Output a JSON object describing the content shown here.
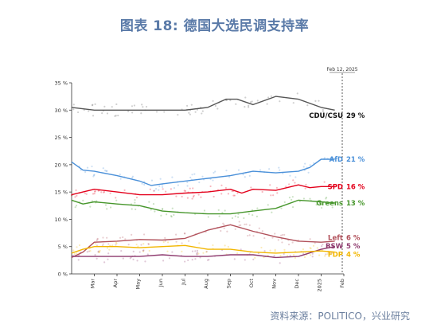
{
  "header": {
    "title": "图表 18: 德国大选民调支持率"
  },
  "footer": {
    "source": "资料来源：POLITICO，兴业研究"
  },
  "chart_data": {
    "type": "line",
    "date_marker": "Feb 12, 2025",
    "ylim": [
      0,
      35
    ],
    "y_ticks": [
      "0 %",
      "5 %",
      "10 %",
      "15 %",
      "20 %",
      "25 %",
      "30 %",
      "35 %"
    ],
    "x_ticks": [
      "Mar",
      "Apr",
      "May",
      "Jun",
      "Jul",
      "Aug",
      "Sep",
      "Oct",
      "Nov",
      "Dec",
      "2025",
      "Feb"
    ],
    "x_months": [
      1,
      2,
      3,
      4,
      5,
      6,
      7,
      8,
      9,
      10,
      11,
      12,
      13
    ],
    "series": [
      {
        "name": "CDU/CSU",
        "label": "29 %",
        "color": "#555555",
        "x": [
          0,
          1,
          2,
          3,
          4,
          5,
          6,
          6.8,
          7.3,
          8,
          9,
          10,
          11,
          11.6
        ],
        "y": [
          30.5,
          30,
          30,
          30,
          30,
          30,
          30.5,
          32,
          32,
          31,
          32.5,
          32,
          30.5,
          30
        ]
      },
      {
        "name": "AfD",
        "label": "21 %",
        "color": "#4a90d9",
        "x": [
          0,
          0.5,
          1,
          2,
          3,
          3.5,
          4,
          5,
          6,
          7,
          8,
          9,
          10,
          10.5,
          11,
          11.6
        ],
        "y": [
          20.5,
          19,
          18.8,
          18,
          17,
          16.2,
          16.5,
          17,
          17.5,
          18,
          18.8,
          18.5,
          18.8,
          19.5,
          21,
          21
        ]
      },
      {
        "name": "SPD",
        "label": "16 %",
        "color": "#e3001b",
        "x": [
          0,
          0.5,
          1,
          2,
          3,
          4,
          5,
          6,
          7,
          7.5,
          8,
          9,
          10,
          10.5,
          11,
          11.6
        ],
        "y": [
          14.5,
          15,
          15.5,
          15,
          14.5,
          14.5,
          14.8,
          15,
          15.5,
          14.8,
          15.5,
          15.3,
          16.3,
          15.8,
          16,
          16
        ]
      },
      {
        "name": "Greens",
        "label": "13 %",
        "color": "#46962b",
        "x": [
          0,
          0.5,
          1,
          2,
          3,
          4,
          5,
          6,
          7,
          8,
          9,
          10,
          11,
          11.6
        ],
        "y": [
          13.5,
          12.8,
          13.2,
          12.8,
          12.5,
          11.5,
          11.2,
          11,
          11,
          11.5,
          12,
          13.5,
          13.2,
          13
        ]
      },
      {
        "name": "Left",
        "label": "6 %",
        "color": "#b1505a",
        "x": [
          0,
          0.5,
          1,
          2,
          3,
          4,
          5,
          6,
          7,
          8,
          9,
          10,
          11,
          11.6
        ],
        "y": [
          3,
          4,
          5.8,
          6,
          6.3,
          6.2,
          6.5,
          8,
          9,
          7.8,
          6.8,
          6,
          5.8,
          6
        ]
      },
      {
        "name": "BSW",
        "label": "5 %",
        "color": "#8e3a6e",
        "x": [
          0,
          1,
          2,
          3,
          4,
          5,
          6,
          7,
          8,
          9,
          10,
          11,
          11.6
        ],
        "y": [
          3.2,
          3.2,
          3.2,
          3.2,
          3.5,
          3.2,
          3.2,
          3.5,
          3.5,
          3,
          3.2,
          4.5,
          5
        ]
      },
      {
        "name": "FDP",
        "label": "4 %",
        "color": "#f2b600",
        "x": [
          0,
          0.5,
          1,
          2,
          3,
          4,
          5,
          6,
          7,
          8,
          9,
          10,
          11,
          11.6
        ],
        "y": [
          3.8,
          4.5,
          5,
          5,
          4.8,
          5,
          5.2,
          4.5,
          4.5,
          4,
          3.8,
          4,
          4.2,
          4
        ]
      }
    ]
  }
}
